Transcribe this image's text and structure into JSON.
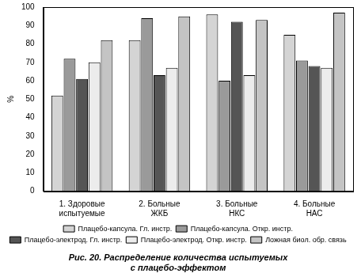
{
  "chart_data": {
    "type": "bar",
    "title": [
      "Рис. 20. Распределение количества испытуемых",
      "с плацебо-эффектом"
    ],
    "y_label": "%",
    "categories": [
      "1. Здоровые испытуемые",
      "2. Больные ЖКБ",
      "3. Больные НКС",
      "4. Больные НАС"
    ],
    "series": [
      {
        "name": "Плацебо-капсула. Гл. инстр.",
        "color": "#d4d4d4",
        "values": [
          52,
          82,
          96,
          85
        ]
      },
      {
        "name": "Плацебо-капсула. Откр. инстр.",
        "color": "#9a9a9a",
        "values": [
          72,
          94,
          60,
          71
        ]
      },
      {
        "name": "Плацебо-электрод. Гл. инстр.",
        "color": "#555555",
        "values": [
          61,
          63,
          92,
          68
        ]
      },
      {
        "name": "Плацебо-электрод. Откр. инстр.",
        "color": "#ececec",
        "values": [
          70,
          67,
          63,
          67
        ]
      },
      {
        "name": "Ложная биол. обр. связь",
        "color": "#c4c4c4",
        "values": [
          82,
          95,
          93,
          97
        ]
      }
    ],
    "ylim": [
      0,
      100
    ],
    "yticks": [
      0,
      10,
      20,
      30,
      40,
      50,
      60,
      70,
      80,
      90,
      100
    ],
    "grid": false,
    "legend": "bottom"
  }
}
